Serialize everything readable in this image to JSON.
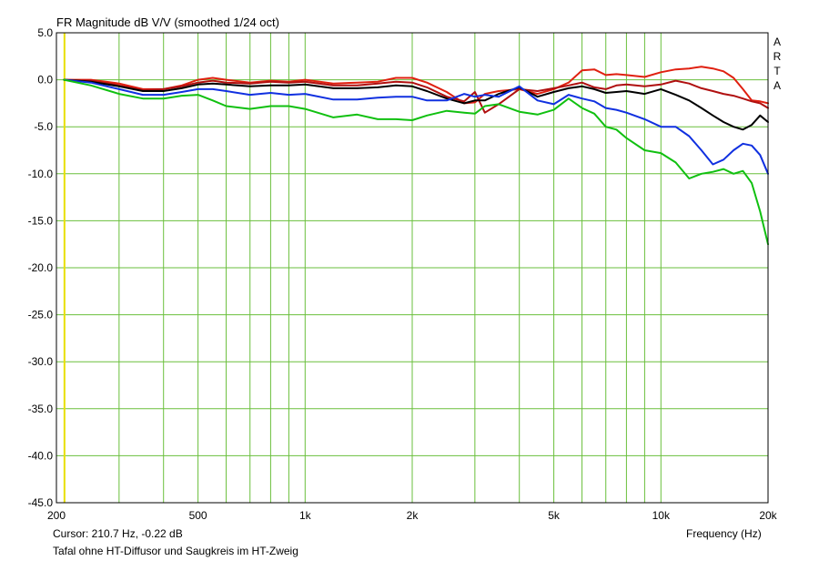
{
  "title": "FR Magnitude dB V/V (smoothed 1/24 oct)",
  "side_label": [
    "A",
    "R",
    "T",
    "A"
  ],
  "cursor_readout": "Cursor: 210.7 Hz, -0.22 dB",
  "caption": "Tafal ohne HT-Diffusor und Saugkreis im HT-Zweig",
  "colors": {
    "background": "#ffffff",
    "grid": "#6abf3c",
    "axes": "#000000",
    "cursor_line": "#e8e000",
    "series": [
      "#e02010",
      "#b01010",
      "#000000",
      "#1030e0",
      "#10c010"
    ]
  },
  "chart_data": {
    "type": "line",
    "title": "FR Magnitude dB V/V (smoothed 1/24 oct)",
    "xlabel": "Frequency (Hz)",
    "ylabel": "",
    "x_scale": "log",
    "xlim": [
      200,
      20000
    ],
    "ylim": [
      -45,
      5
    ],
    "y_ticks": [
      5,
      0,
      -5,
      -10,
      -15,
      -20,
      -25,
      -30,
      -35,
      -40,
      -45
    ],
    "y_tick_labels": [
      "5.0",
      "0.0",
      "-5.0",
      "-10.0",
      "-15.0",
      "-20.0",
      "-25.0",
      "-30.0",
      "-35.0",
      "-40.0",
      "-45.0"
    ],
    "x_tick_labels": [
      {
        "value": 200,
        "label": "200"
      },
      {
        "value": 500,
        "label": "500"
      },
      {
        "value": 1000,
        "label": "1k"
      },
      {
        "value": 2000,
        "label": "2k"
      },
      {
        "value": 5000,
        "label": "5k"
      },
      {
        "value": 10000,
        "label": "10k"
      },
      {
        "value": 20000,
        "label": "20k"
      }
    ],
    "x_gridlines": [
      200,
      300,
      400,
      500,
      600,
      700,
      800,
      900,
      1000,
      2000,
      3000,
      4000,
      5000,
      6000,
      7000,
      8000,
      9000,
      10000,
      20000
    ],
    "grid": true,
    "cursor_x": 210.7,
    "series": [
      {
        "color": "#e02010",
        "x": [
          210,
          250,
          300,
          350,
          400,
          450,
          500,
          550,
          600,
          700,
          800,
          900,
          1000,
          1200,
          1400,
          1600,
          1800,
          2000,
          2200,
          2500,
          2800,
          3000,
          3200,
          3500,
          4000,
          4500,
          5000,
          5500,
          6000,
          6500,
          7000,
          7500,
          8000,
          9000,
          10000,
          11000,
          12000,
          13000,
          14000,
          15000,
          16000,
          17000,
          18000,
          19000,
          20000
        ],
        "y": [
          0.0,
          0.0,
          -0.4,
          -1.0,
          -1.0,
          -0.6,
          0.0,
          0.2,
          0.0,
          -0.3,
          -0.1,
          -0.2,
          0.0,
          -0.4,
          -0.3,
          -0.2,
          0.2,
          0.2,
          -0.3,
          -1.3,
          -2.5,
          -2.4,
          -1.5,
          -1.2,
          -1.0,
          -1.5,
          -1.0,
          -0.3,
          1.0,
          1.1,
          0.5,
          0.6,
          0.5,
          0.3,
          0.8,
          1.1,
          1.2,
          1.4,
          1.2,
          0.9,
          0.2,
          -1.0,
          -2.2,
          -2.3,
          -2.5
        ]
      },
      {
        "color": "#b01010",
        "x": [
          210,
          250,
          300,
          350,
          400,
          450,
          500,
          550,
          600,
          700,
          800,
          900,
          1000,
          1200,
          1400,
          1600,
          1800,
          2000,
          2200,
          2500,
          2800,
          3000,
          3200,
          3500,
          4000,
          4500,
          5000,
          5500,
          6000,
          6500,
          7000,
          7500,
          8000,
          9000,
          10000,
          11000,
          12000,
          13000,
          14000,
          15000,
          16000,
          17000,
          18000,
          19000,
          20000
        ],
        "y": [
          0.0,
          -0.1,
          -0.6,
          -1.1,
          -1.0,
          -0.7,
          -0.3,
          -0.1,
          -0.3,
          -0.4,
          -0.2,
          -0.3,
          -0.2,
          -0.6,
          -0.6,
          -0.4,
          -0.2,
          -0.3,
          -0.8,
          -1.8,
          -2.3,
          -1.3,
          -3.5,
          -2.6,
          -1.0,
          -1.2,
          -0.9,
          -0.6,
          -0.3,
          -0.8,
          -1.0,
          -0.6,
          -0.5,
          -0.7,
          -0.5,
          -0.1,
          -0.4,
          -0.9,
          -1.2,
          -1.5,
          -1.7,
          -2.0,
          -2.3,
          -2.5,
          -3.0
        ]
      },
      {
        "color": "#000000",
        "x": [
          210,
          250,
          300,
          350,
          400,
          450,
          500,
          550,
          600,
          700,
          800,
          900,
          1000,
          1200,
          1400,
          1600,
          1800,
          2000,
          2200,
          2500,
          2800,
          3000,
          3200,
          3500,
          4000,
          4500,
          5000,
          5500,
          6000,
          6500,
          7000,
          7500,
          8000,
          9000,
          10000,
          11000,
          12000,
          13000,
          14000,
          15000,
          16000,
          17000,
          18000,
          19000,
          20000
        ],
        "y": [
          0.0,
          -0.2,
          -0.7,
          -1.2,
          -1.2,
          -0.9,
          -0.5,
          -0.4,
          -0.5,
          -0.7,
          -0.6,
          -0.6,
          -0.5,
          -0.9,
          -0.9,
          -0.8,
          -0.6,
          -0.7,
          -1.2,
          -2.0,
          -2.5,
          -2.2,
          -2.2,
          -1.5,
          -0.8,
          -1.8,
          -1.3,
          -0.9,
          -0.7,
          -1.0,
          -1.4,
          -1.3,
          -1.2,
          -1.5,
          -1.0,
          -1.6,
          -2.2,
          -3.0,
          -3.8,
          -4.5,
          -5.0,
          -5.3,
          -4.8,
          -3.8,
          -4.5
        ]
      },
      {
        "color": "#1030e0",
        "x": [
          210,
          250,
          300,
          350,
          400,
          450,
          500,
          550,
          600,
          700,
          800,
          900,
          1000,
          1200,
          1400,
          1600,
          1800,
          2000,
          2200,
          2500,
          2800,
          3000,
          3200,
          3500,
          4000,
          4500,
          5000,
          5500,
          6000,
          6500,
          7000,
          7500,
          8000,
          9000,
          10000,
          11000,
          12000,
          13000,
          14000,
          15000,
          16000,
          17000,
          18000,
          19000,
          20000
        ],
        "y": [
          0.0,
          -0.3,
          -1.0,
          -1.6,
          -1.6,
          -1.3,
          -1.0,
          -1.0,
          -1.2,
          -1.6,
          -1.4,
          -1.6,
          -1.5,
          -2.1,
          -2.1,
          -1.9,
          -1.8,
          -1.8,
          -2.2,
          -2.2,
          -1.5,
          -1.8,
          -1.6,
          -1.8,
          -0.7,
          -2.2,
          -2.6,
          -1.6,
          -2.0,
          -2.3,
          -3.0,
          -3.2,
          -3.5,
          -4.2,
          -5.0,
          -5.0,
          -6.0,
          -7.5,
          -9.0,
          -8.5,
          -7.5,
          -6.8,
          -7.0,
          -8.0,
          -10.0
        ]
      },
      {
        "color": "#10c010",
        "x": [
          210,
          250,
          300,
          350,
          400,
          450,
          500,
          550,
          600,
          700,
          800,
          900,
          1000,
          1200,
          1400,
          1600,
          1800,
          2000,
          2200,
          2500,
          2800,
          3000,
          3200,
          3500,
          4000,
          4500,
          5000,
          5500,
          6000,
          6500,
          7000,
          7500,
          8000,
          9000,
          10000,
          11000,
          12000,
          13000,
          14000,
          15000,
          16000,
          17000,
          18000,
          19000,
          20000
        ],
        "y": [
          0.0,
          -0.6,
          -1.5,
          -2.0,
          -2.0,
          -1.7,
          -1.6,
          -2.2,
          -2.8,
          -3.1,
          -2.8,
          -2.8,
          -3.1,
          -4.0,
          -3.7,
          -4.2,
          -4.2,
          -4.3,
          -3.8,
          -3.3,
          -3.5,
          -3.6,
          -2.8,
          -2.6,
          -3.4,
          -3.7,
          -3.2,
          -2.0,
          -3.0,
          -3.6,
          -5.0,
          -5.3,
          -6.2,
          -7.5,
          -7.8,
          -8.8,
          -10.5,
          -10.0,
          -9.8,
          -9.5,
          -10.0,
          -9.7,
          -11.0,
          -14.0,
          -17.5
        ]
      }
    ]
  }
}
